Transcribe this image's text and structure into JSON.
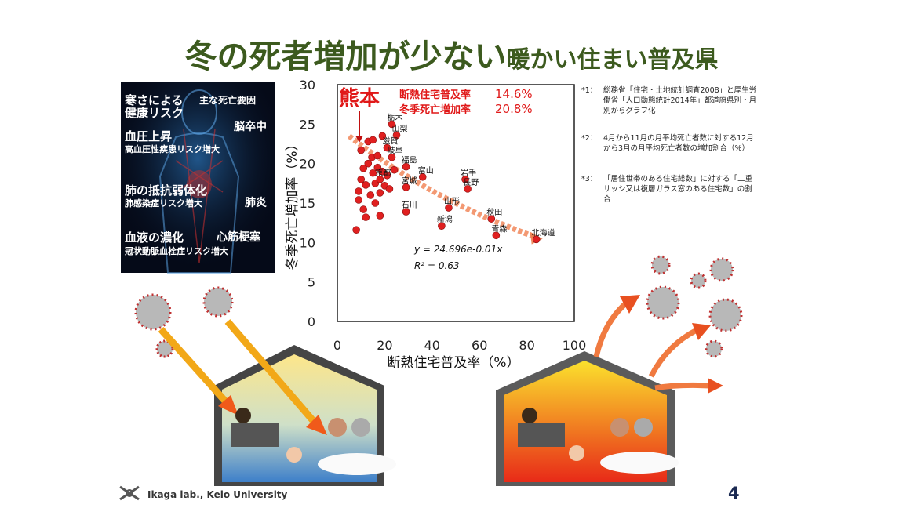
{
  "title": {
    "main": "冬の死者増加が少ない",
    "sub": "暖かい住まい普及県"
  },
  "risk_panel": {
    "heading1": "寒さによる",
    "heading2": "健康リスク",
    "heading_right": "主な死亡要因",
    "items": [
      {
        "head": "血圧上昇",
        "sub": "高血圧性疾患リスク増大",
        "disease": "脳卒中"
      },
      {
        "head": "肺の抵抗弱体化",
        "sub": "肺感染症リスク増大",
        "disease": "肺炎"
      },
      {
        "head": "血液の濃化",
        "sub": "冠状動脈血栓症リスク増大",
        "disease": "心筋梗塞"
      }
    ]
  },
  "chart_data": {
    "type": "scatter",
    "title": "",
    "xlabel": "断熱住宅普及率（%）",
    "ylabel": "冬季死亡増加率（%）",
    "xlim": [
      0,
      100
    ],
    "ylim": [
      0,
      30
    ],
    "xticks": [
      "0",
      "20",
      "40",
      "60",
      "80",
      "100"
    ],
    "yticks": [
      "0",
      "5",
      "10",
      "15",
      "20",
      "25",
      "30"
    ],
    "point_color": "#e02020",
    "trend_color": "#f08050",
    "highlight": {
      "name": "熊本",
      "label1": "断熱住宅普及率",
      "value1": "14.6%",
      "label2": "冬季死亡増加率",
      "value2": "20.8%"
    },
    "equation": "y = 24.696e-0.01x",
    "r2": "R² = 0.63",
    "trendline": {
      "a": 24.696,
      "b": -0.01,
      "x_from": 5,
      "x_to": 84
    },
    "labeled_points": [
      {
        "label": "栃木",
        "x": 23,
        "y": 25.0
      },
      {
        "label": "山梨",
        "x": 25,
        "y": 23.6
      },
      {
        "label": "滋賀",
        "x": 21,
        "y": 22.0
      },
      {
        "label": "岐阜",
        "x": 23,
        "y": 20.8
      },
      {
        "label": "福島",
        "x": 29,
        "y": 19.6
      },
      {
        "label": "京都",
        "x": 18,
        "y": 18.0
      },
      {
        "label": "宮城",
        "x": 29,
        "y": 17.0
      },
      {
        "label": "富山",
        "x": 36,
        "y": 18.3
      },
      {
        "label": "岩手",
        "x": 54,
        "y": 18.0
      },
      {
        "label": "長野",
        "x": 55,
        "y": 16.8
      },
      {
        "label": "山形",
        "x": 47,
        "y": 14.4
      },
      {
        "label": "石川",
        "x": 29,
        "y": 13.9
      },
      {
        "label": "秋田",
        "x": 65,
        "y": 13.0
      },
      {
        "label": "新潟",
        "x": 44,
        "y": 12.1
      },
      {
        "label": "青森",
        "x": 67,
        "y": 10.9
      },
      {
        "label": "北海道",
        "x": 84,
        "y": 10.4
      }
    ],
    "points": [
      {
        "x": 8,
        "y": 11.6
      },
      {
        "x": 9,
        "y": 15.4
      },
      {
        "x": 9,
        "y": 16.5
      },
      {
        "x": 10,
        "y": 18.0
      },
      {
        "x": 10,
        "y": 21.7
      },
      {
        "x": 11,
        "y": 14.2
      },
      {
        "x": 11,
        "y": 19.4
      },
      {
        "x": 12,
        "y": 13.2
      },
      {
        "x": 12,
        "y": 17.3
      },
      {
        "x": 13,
        "y": 22.8
      },
      {
        "x": 13,
        "y": 20.0
      },
      {
        "x": 14,
        "y": 16.0
      },
      {
        "x": 14.6,
        "y": 20.8
      },
      {
        "x": 15,
        "y": 18.8
      },
      {
        "x": 15,
        "y": 23.0
      },
      {
        "x": 16,
        "y": 17.5
      },
      {
        "x": 16,
        "y": 15.0
      },
      {
        "x": 17,
        "y": 19.5
      },
      {
        "x": 17,
        "y": 21.0
      },
      {
        "x": 18,
        "y": 16.3
      },
      {
        "x": 18,
        "y": 13.4
      },
      {
        "x": 19,
        "y": 23.5
      },
      {
        "x": 19,
        "y": 19.0
      },
      {
        "x": 20,
        "y": 17.2
      },
      {
        "x": 21,
        "y": 18.5
      },
      {
        "x": 22,
        "y": 16.8
      },
      {
        "x": 24,
        "y": 19.2
      }
    ]
  },
  "notes": [
    {
      "mark": "*1：",
      "text": "総務省「住宅・土地統計調査2008」と厚生労働省「人口動態統計2014年」都道府県別・月別からグラフ化"
    },
    {
      "mark": "*2：",
      "text": "4月から11月の月平均死亡者数に対する12月から3月の月平均死亡者数の増加割合（%）"
    },
    {
      "mark": "*3：",
      "text": "「居住世帯のある住宅総数」に対する「二重サッシ又は複層ガラス窓のある住宅数」の割合"
    }
  ],
  "footer": {
    "lab": "Ikaga lab., Keio University",
    "page": "4"
  }
}
